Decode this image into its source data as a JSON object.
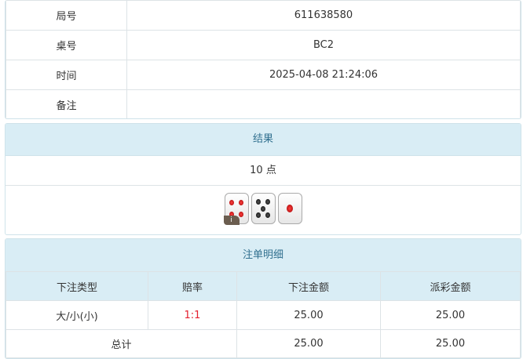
{
  "info": [
    {
      "label": "局号",
      "value": "611638580"
    },
    {
      "label": "桌号",
      "value": "BC2"
    },
    {
      "label": "时间",
      "value": "2025-04-08 21:24:06"
    },
    {
      "label": "备注",
      "value": ""
    }
  ],
  "result": {
    "title": "结果",
    "points": "10 点",
    "dice": [
      4,
      5,
      1
    ],
    "info_badge": "i"
  },
  "bets": {
    "title": "注单明细",
    "headers": [
      "下注类型",
      "赔率",
      "下注金额",
      "派彩金额"
    ],
    "rows": [
      {
        "type": "大/小(小)",
        "odds": "1:1",
        "amount": "25.00",
        "payout": "25.00"
      }
    ],
    "total": {
      "label": "总计",
      "amount": "25.00",
      "payout": "25.00"
    }
  },
  "colors": {
    "header_bg": "#d9edf5",
    "header_text": "#31708f",
    "odds": "#e4202f"
  }
}
